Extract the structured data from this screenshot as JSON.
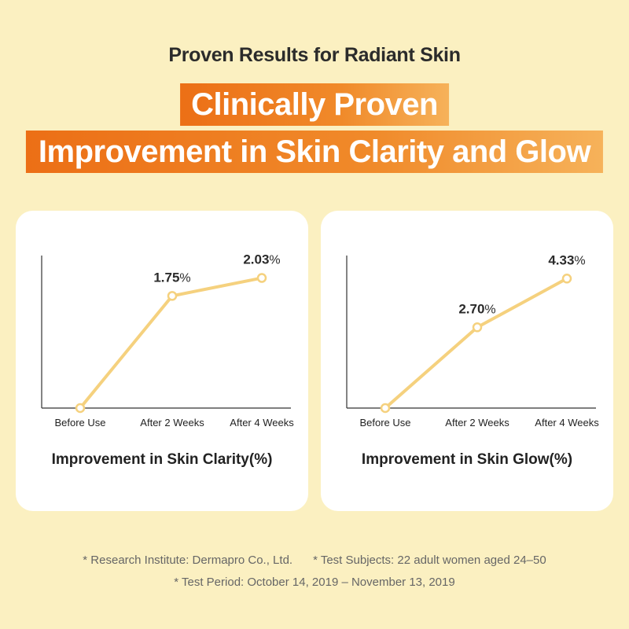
{
  "header": {
    "subtitle": "Proven Results for Radiant Skin",
    "banner_line1": "Clinically Proven",
    "banner_line2": "Improvement in Skin Clarity and Glow"
  },
  "colors": {
    "background": "#fbf0c1",
    "banner_orange": "#ec6f16",
    "line": "#f5d17e",
    "card": "#ffffff"
  },
  "chart_data": [
    {
      "type": "line",
      "title": "Improvement in Skin Clarity(%)",
      "categories": [
        "Before Use",
        "After 2 Weeks",
        "After 4 Weeks"
      ],
      "values": [
        0,
        1.75,
        2.03
      ],
      "data_labels": [
        "",
        "1.75",
        "2.03"
      ],
      "unit": "%",
      "ylim": [
        0,
        2.38
      ],
      "grid": false
    },
    {
      "type": "line",
      "title": "Improvement in Skin Glow(%)",
      "categories": [
        "Before Use",
        "After 2 Weeks",
        "After 4 Weeks"
      ],
      "values": [
        0,
        2.7,
        4.33
      ],
      "data_labels": [
        "",
        "2.70",
        "4.33"
      ],
      "unit": "%",
      "ylim": [
        0,
        5.1
      ],
      "grid": false
    }
  ],
  "footnotes": {
    "institute": "* Research Institute: Dermapro Co., Ltd.",
    "subjects": "* Test Subjects: 22 adult women aged 24–50",
    "period": "* Test Period: October 14, 2019 – November 13, 2019"
  }
}
